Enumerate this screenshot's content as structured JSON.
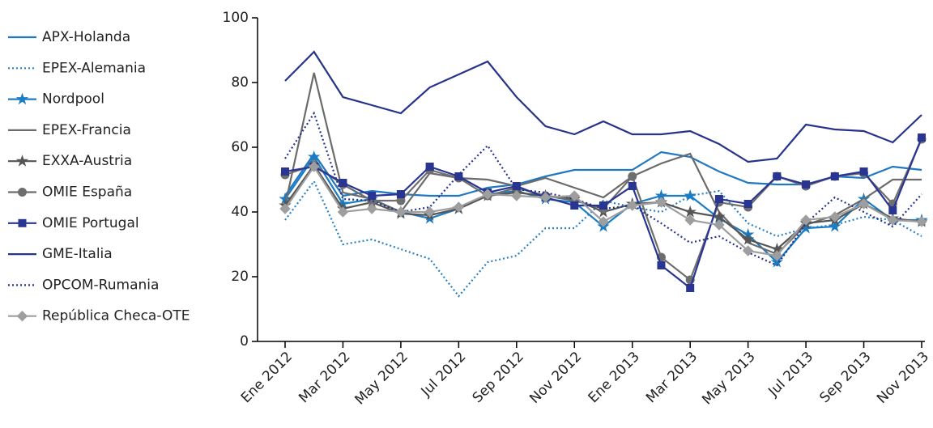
{
  "chart_data": {
    "type": "line",
    "categories": [
      "Ene 2012",
      null,
      "Mar 2012",
      null,
      "May 2012",
      null,
      "Jul 2012",
      null,
      "Sep 2012",
      null,
      "Nov 2012",
      null,
      "Ene 2013",
      null,
      "Mar 2013",
      null,
      "May 2013",
      null,
      "Jul 2013",
      null,
      "Sep 2013",
      null,
      "Nov 2013"
    ],
    "ylim": [
      0,
      100
    ],
    "yticks": [
      0,
      20,
      40,
      60,
      80,
      100
    ],
    "grid": false,
    "legend": "left",
    "series": [
      {
        "name": "APX-Holanda",
        "color": "#1f78c1",
        "style": "solid",
        "marker": "none",
        "values": [
          45,
          58,
          45,
          46.5,
          45.5,
          45,
          45,
          47.5,
          48.5,
          51,
          53,
          53,
          53,
          58.5,
          57,
          52.5,
          49,
          48.5,
          48.5,
          51,
          50.5,
          54,
          53
        ]
      },
      {
        "name": "EPEX-Alemania",
        "color": "#2a80c2",
        "style": "dotted",
        "marker": "none",
        "values": [
          37.5,
          49.5,
          30,
          31.5,
          28.5,
          25.5,
          14,
          24.5,
          26.5,
          35,
          35,
          43.5,
          41.5,
          40,
          45,
          46.5,
          36.5,
          32.5,
          35,
          36,
          38.5,
          37.5,
          32.5
        ]
      },
      {
        "name": "Nordpool",
        "color": "#1a7cc4",
        "style": "solid",
        "marker": "star",
        "values": [
          44,
          57,
          42.5,
          44,
          40,
          38,
          41,
          45.5,
          46.5,
          44,
          43,
          35.5,
          42.5,
          45,
          45,
          38,
          33,
          24.5,
          35,
          35.5,
          44,
          37.5,
          37.5
        ]
      },
      {
        "name": "EPEX-Francia",
        "color": "#6b6b6b",
        "style": "solid",
        "marker": "none",
        "values": [
          42,
          83,
          46,
          44,
          40,
          52,
          50.5,
          50,
          48,
          50.5,
          47.5,
          44.5,
          51,
          55,
          58,
          40,
          30.5,
          27,
          36,
          39,
          44,
          50,
          50
        ]
      },
      {
        "name": "EXXA-Austria",
        "color": "#555555",
        "style": "solid",
        "marker": "star",
        "values": [
          42,
          54.5,
          41,
          43,
          39.5,
          39,
          41,
          45,
          46,
          45,
          44,
          40,
          42.5,
          43,
          40,
          38.5,
          31.5,
          28.5,
          36.5,
          37.5,
          42.5,
          38,
          37
        ]
      },
      {
        "name": "OMIE España",
        "color": "#6e6e6e",
        "style": "solid",
        "marker": "circle",
        "values": [
          51.5,
          54.5,
          48.5,
          43.5,
          43.5,
          53,
          50.5,
          45,
          47.5,
          45,
          43.5,
          41,
          51,
          26,
          19,
          43,
          41.5,
          51,
          48,
          51,
          52,
          42.5,
          62.5
        ]
      },
      {
        "name": "OMIE Portugal",
        "color": "#283593",
        "style": "solid",
        "marker": "square",
        "values": [
          52.5,
          54,
          49,
          45,
          45.5,
          54,
          51,
          46,
          48,
          44.5,
          42,
          42,
          48,
          23.5,
          16.5,
          44,
          42.5,
          51,
          48.5,
          51,
          52.5,
          40.5,
          63
        ]
      },
      {
        "name": "GME-Italia",
        "color": "#26338a",
        "style": "solid",
        "marker": "none",
        "values": [
          80.5,
          89.5,
          75.5,
          73,
          70.5,
          78.5,
          82.5,
          86.5,
          75.5,
          66.5,
          64,
          68,
          64,
          64,
          65,
          61,
          55.5,
          56.5,
          67,
          65.5,
          65,
          61.5,
          70
        ]
      },
      {
        "name": "OPCOM-Rumania",
        "color": "#26338a",
        "style": "dotted",
        "marker": "none",
        "values": [
          56.5,
          70.5,
          44,
          43.5,
          40,
          41.5,
          51.5,
          60.5,
          47,
          46,
          44,
          41,
          42,
          36.5,
          30.5,
          32.5,
          27.5,
          23.5,
          36.5,
          44.5,
          40,
          35.5,
          45.5
        ]
      },
      {
        "name": "República Checa-OTE",
        "color": "#9e9e9e",
        "style": "solid",
        "marker": "diamond",
        "values": [
          41,
          54,
          40,
          41,
          40,
          40,
          41.5,
          45.5,
          45,
          44.5,
          45,
          37,
          42,
          43,
          37.5,
          36,
          28,
          26.5,
          37.5,
          38.5,
          42.5,
          37.5,
          37
        ]
      }
    ]
  }
}
